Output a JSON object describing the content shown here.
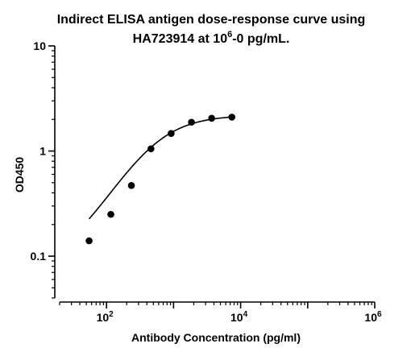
{
  "chart_data": {
    "type": "scatter",
    "title_line1": "Indirect ELISA antigen dose-response curve using",
    "title_line2_prefix": "HA723914 at 10",
    "title_line2_sup": "6",
    "title_line2_suffix": "-0 pg/mL.",
    "xlabel": "Antibody Concentration (pg/ml)",
    "ylabel": "OD450",
    "xscale": "log",
    "yscale": "log",
    "xlim": [
      20,
      1000000
    ],
    "ylim": [
      0.04,
      10
    ],
    "x_tick_labels": [
      {
        "base": "10",
        "exp": "2",
        "value": 100
      },
      {
        "base": "10",
        "exp": "4",
        "value": 10000
      },
      {
        "base": "10",
        "exp": "6",
        "value": 1000000
      }
    ],
    "y_tick_labels": [
      {
        "label": "10",
        "value": 10
      },
      {
        "label": "1",
        "value": 1
      },
      {
        "label": "0.1",
        "value": 0.1
      }
    ],
    "series": [
      {
        "x": [
          55,
          116,
          235,
          460,
          920,
          1850,
          3700,
          7400
        ],
        "y": [
          0.14,
          0.25,
          0.47,
          1.05,
          1.47,
          1.88,
          2.05,
          2.1
        ],
        "fit": "four-parameter logistic curve"
      }
    ],
    "grid": false,
    "legend": "none"
  }
}
